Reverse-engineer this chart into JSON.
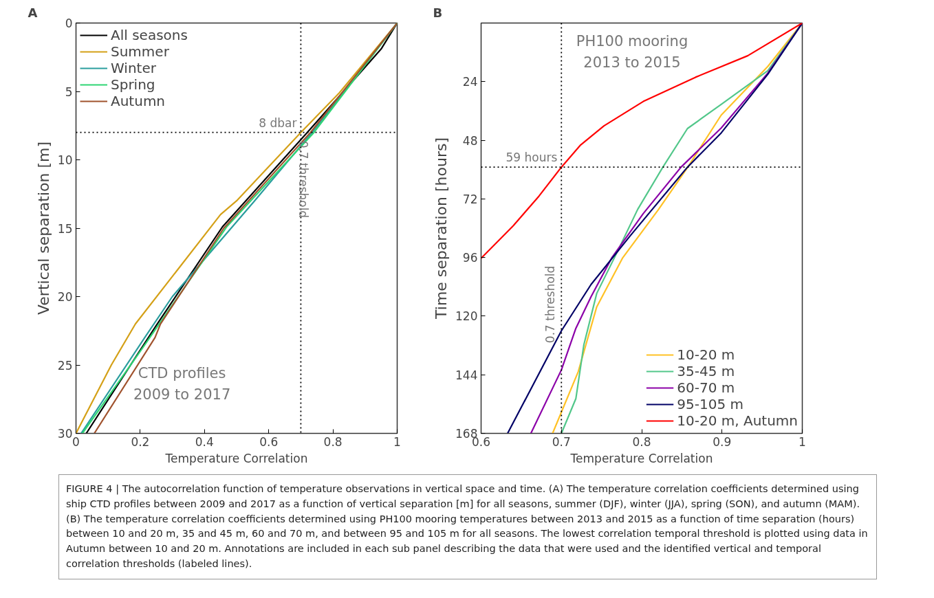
{
  "chart_data": [
    {
      "type": "line",
      "title": "A",
      "xlabel": "Temperature Correlation",
      "ylabel": "Vertical separation [m]",
      "xlim": [
        0,
        1
      ],
      "xticks": [
        0,
        0.2,
        0.4,
        0.6,
        0.8,
        1
      ],
      "ylim": [
        30,
        0
      ],
      "yticks": [
        0,
        5,
        10,
        15,
        20,
        25,
        30
      ],
      "grid": false,
      "legend": "top left",
      "line_style": "solid",
      "series": [
        {
          "name": "All seasons",
          "color": "#000000",
          "x": [
            1,
            0.95,
            0.72,
            0.456,
            0.25,
            0.032
          ],
          "values": [
            0,
            1.9,
            8,
            14.9,
            22.1,
            30
          ]
        },
        {
          "name": "Summer",
          "color": "#d4a017",
          "x": [
            1,
            0.82,
            0.7,
            0.5,
            0.45,
            0.185,
            0.11,
            0.0
          ],
          "values": [
            0,
            5.1,
            8,
            13,
            14,
            22,
            25,
            30
          ]
        },
        {
          "name": "Winter",
          "color": "#2a9d9e",
          "x": [
            1,
            0.735,
            0.556,
            0.3,
            0.214,
            0.016
          ],
          "values": [
            0,
            8,
            13,
            20,
            23,
            30
          ]
        },
        {
          "name": "Spring",
          "color": "#2ed573",
          "x": [
            1,
            0.741,
            0.469,
            0.2,
            0.02
          ],
          "values": [
            0,
            8,
            14.9,
            24,
            30
          ]
        },
        {
          "name": "Autumn",
          "color": "#a0522d",
          "x": [
            1,
            0.73,
            0.46,
            0.263,
            0.246,
            0.057
          ],
          "values": [
            0,
            8,
            15,
            22,
            23,
            30
          ]
        }
      ],
      "ref_lines": [
        {
          "axis": "y",
          "value": 8,
          "label": "8 dbar",
          "line_style": "dotted",
          "color": "#000000"
        },
        {
          "axis": "x",
          "value": 0.7,
          "label": "0.7 threshold",
          "line_style": "dotted",
          "color": "#000000"
        }
      ],
      "annotations": [
        "CTD profiles\n2009 to 2017"
      ]
    },
    {
      "type": "line",
      "title": "B",
      "xlabel": "Temperature Correlation",
      "ylabel": "Time separation [hours]",
      "xlim": [
        0.6,
        1
      ],
      "xticks": [
        0.6,
        0.7,
        0.8,
        0.9,
        1
      ],
      "ylim": [
        168,
        0
      ],
      "yticks": [
        24,
        48,
        72,
        96,
        120,
        144,
        168
      ],
      "grid": false,
      "legend": "bottom right",
      "line_style": "solid",
      "series": [
        {
          "name": "10-20 m",
          "color": "#ffc125",
          "x": [
            1,
            0.957,
            0.899,
            0.857,
            0.821,
            0.776,
            0.744,
            0.721,
            0.689
          ],
          "values": [
            0,
            17.8,
            37.7,
            59.2,
            76.3,
            96.3,
            116.2,
            142.7,
            168
          ]
        },
        {
          "name": "35-45 m",
          "color": "#52c78a",
          "x": [
            1,
            0.957,
            0.899,
            0.857,
            0.826,
            0.795,
            0.769,
            0.744,
            0.728,
            0.718,
            0.7
          ],
          "values": [
            0,
            19.5,
            33.3,
            43.2,
            59.2,
            76.3,
            94.1,
            110.7,
            131.7,
            153.8,
            168
          ]
        },
        {
          "name": "60-70 m",
          "color": "#8b00a8",
          "x": [
            1,
            0.957,
            0.899,
            0.849,
            0.802,
            0.763,
            0.737,
            0.718,
            0.7,
            0.662
          ],
          "values": [
            0,
            20.5,
            43,
            59,
            78,
            96,
            112,
            125,
            142,
            168
          ]
        },
        {
          "name": "95-105 m",
          "color": "#000066",
          "x": [
            1,
            0.957,
            0.899,
            0.857,
            0.786,
            0.737,
            0.7,
            0.633
          ],
          "values": [
            0,
            21,
            45,
            59,
            87,
            107,
            126,
            168
          ]
        },
        {
          "name": "10-20 m, Autumn",
          "color": "#ff0000",
          "x": [
            1,
            0.932,
            0.867,
            0.802,
            0.753,
            0.724,
            0.7,
            0.672,
            0.64,
            0.6
          ],
          "values": [
            0,
            13.4,
            22.2,
            32.1,
            42.1,
            49.9,
            59,
            70.9,
            83,
            96.3
          ]
        }
      ],
      "ref_lines": [
        {
          "axis": "y",
          "value": 59,
          "label": "59 hours",
          "line_style": "dotted",
          "color": "#000000"
        },
        {
          "axis": "x",
          "value": 0.7,
          "label": "0.7 threshold",
          "line_style": "dotted",
          "color": "#000000"
        }
      ],
      "annotations": [
        "PH100 mooring\n2013 to 2015",
        "FIGURE 4 | The autocorrelation function of temperature observations in vertical space and time. (A) The temperature correlation coefficients determined using ship CTD profiles between 2009 and 2017 as a function of vertical separation [m] for all seasons, summer (DJF), winter (JJA), spring (SON), and autumn (MAM). (B) The temperature correlation coefficients determined using PH100 mooring temperatures between 2013 and 2015 as a function of time separation (hours) between 10 and 20 m, 35 and 45 m, 60 and 70 m, and between 95 and 105 m for all seasons. The lowest correlation temporal threshold is plotted using data in Autumn between 10 and 20 m. Annotations are included in each sub panel describing the data that were used and the identified vertical and temporal correlation thresholds (labeled lines)."
      ]
    }
  ]
}
